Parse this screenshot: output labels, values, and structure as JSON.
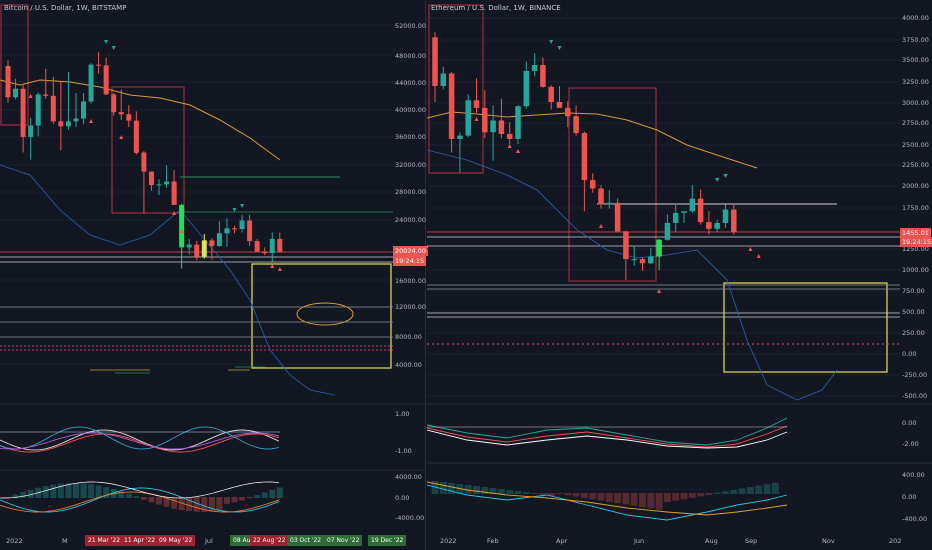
{
  "left": {
    "title": "Bitcoin / U.S. Dollar, 1W, BITSTAMP",
    "price_ticks": [
      "52000.00",
      "48000.00",
      "44000.00",
      "40000.00",
      "36000.00",
      "32000.00",
      "28000.00",
      "24000.00",
      "16000.00",
      "12000.00",
      "8000.00",
      "4000.00"
    ],
    "last_price": "20024.00",
    "countdown": "19:24:15",
    "osc_ticks": [
      "1.00",
      "-1.00"
    ],
    "macd_ticks": [
      "4000.00",
      "0.00",
      "-4000.00"
    ],
    "x_labels": [
      "2022",
      "Jul"
    ],
    "x_highlights": [
      {
        "text": "21 Mar '22",
        "color": "#a02230"
      },
      {
        "text": "11 Apr '22",
        "color": "#a02230"
      },
      {
        "text": "09 May '22",
        "color": "#a02230"
      },
      {
        "text": "08 Aug '22",
        "color": "#2e6b36"
      },
      {
        "text": "22 Aug '22",
        "color": "#a02230"
      },
      {
        "text": "03 Oct '22",
        "color": "#2e6b36"
      },
      {
        "text": "07 Nov '22",
        "color": "#2e6b36"
      },
      {
        "text": "19 Dec '22",
        "color": "#2e6b36"
      }
    ],
    "x_overlap_text": "M",
    "candles": [
      [
        "2022-01-03",
        46200,
        47000,
        41000,
        41800
      ],
      [
        "2022-01-10",
        41800,
        44400,
        41500,
        43000
      ],
      [
        "2022-01-17",
        43000,
        43500,
        34000,
        36200
      ],
      [
        "2022-01-24",
        36200,
        38900,
        33000,
        37800
      ],
      [
        "2022-01-31",
        37800,
        42500,
        36300,
        42200
      ],
      [
        "2022-02-07",
        42200,
        45800,
        41600,
        42000
      ],
      [
        "2022-02-14",
        42000,
        44700,
        38000,
        38400
      ],
      [
        "2022-02-21",
        38400,
        44000,
        34300,
        37700
      ],
      [
        "2022-02-28",
        37700,
        45400,
        37200,
        38400
      ],
      [
        "2022-03-07",
        38400,
        42400,
        37600,
        38800
      ],
      [
        "2022-03-14",
        38800,
        42400,
        38000,
        41200
      ],
      [
        "2022-03-21",
        41200,
        46600,
        40900,
        46400
      ],
      [
        "2022-03-28",
        46400,
        48200,
        45100,
        46300
      ],
      [
        "2022-04-04",
        46300,
        47400,
        42100,
        42200
      ],
      [
        "2022-04-11",
        42200,
        42400,
        39200,
        39700
      ],
      [
        "2022-04-18",
        39700,
        42900,
        38600,
        39400
      ],
      [
        "2022-04-25",
        39400,
        40700,
        37600,
        38500
      ],
      [
        "2022-05-02",
        38500,
        39800,
        33700,
        34000
      ],
      [
        "2022-05-09",
        34000,
        34200,
        25400,
        31300
      ],
      [
        "2022-05-16",
        31300,
        31300,
        28600,
        29400
      ],
      [
        "2022-05-23",
        29400,
        30200,
        28000,
        29500
      ],
      [
        "2022-05-30",
        29500,
        32200,
        29000,
        29900
      ],
      [
        "2022-06-06",
        29900,
        31500,
        26600,
        26600
      ],
      [
        "2022-06-13",
        26600,
        26800,
        17600,
        20600
      ],
      [
        "2022-06-20",
        20600,
        21800,
        19600,
        21000
      ],
      [
        "2022-06-27",
        21000,
        21500,
        18800,
        19300
      ],
      [
        "2022-07-04",
        19300,
        22500,
        19000,
        21600
      ],
      [
        "2022-07-11",
        21600,
        21900,
        18900,
        20800
      ],
      [
        "2022-07-18",
        20800,
        24300,
        20700,
        22600
      ],
      [
        "2022-07-25",
        22600,
        24700,
        20700,
        23300
      ],
      [
        "2022-08-01",
        23300,
        23700,
        22600,
        23200
      ],
      [
        "2022-08-08",
        23200,
        25200,
        22700,
        24400
      ],
      [
        "2022-08-15",
        24400,
        25200,
        20800,
        21500
      ],
      [
        "2022-08-22",
        21500,
        21800,
        19900,
        20000
      ],
      [
        "2022-08-29",
        20000,
        20600,
        19500,
        19800
      ],
      [
        "2022-09-05",
        19800,
        22700,
        18600,
        21800
      ],
      [
        "2022-09-12",
        21800,
        22700,
        19800,
        20000
      ]
    ]
  },
  "right": {
    "title": "Ethereum / U.S. Dollar, 1W, BINANCE",
    "price_ticks": [
      "4000.00",
      "3750.00",
      "3500.00",
      "3250.00",
      "3000.00",
      "2750.00",
      "2500.00",
      "2250.00",
      "2000.00",
      "1750.00",
      "1250.00",
      "1000.00",
      "750.00",
      "500.00",
      "250.00",
      "0.00",
      "-250.00",
      "-500.00"
    ],
    "last_price": "1455.01",
    "countdown": "19:24:15",
    "osc_ticks": [
      "0.00",
      "-2.00"
    ],
    "macd_ticks": [
      "400.00",
      "0.00",
      "-400.00"
    ],
    "x_labels": [
      "2022",
      "Feb",
      "Apr",
      "Jun",
      "Aug",
      "Sep",
      "Nov",
      "202"
    ],
    "candles": [
      [
        "2022-01-03",
        3770,
        3830,
        3000,
        3190
      ],
      [
        "2022-01-10",
        3190,
        3420,
        3150,
        3340
      ],
      [
        "2022-01-17",
        3340,
        3360,
        2400,
        2560
      ],
      [
        "2022-01-24",
        2560,
        2640,
        2160,
        2600
      ],
      [
        "2022-01-31",
        2600,
        3090,
        2580,
        3020
      ],
      [
        "2022-02-07",
        3020,
        3280,
        2870,
        2930
      ],
      [
        "2022-02-14",
        2930,
        3140,
        2570,
        2640
      ],
      [
        "2022-02-21",
        2640,
        2960,
        2300,
        2780
      ],
      [
        "2022-02-28",
        2780,
        3040,
        2570,
        2620
      ],
      [
        "2022-03-07",
        2620,
        2760,
        2500,
        2560
      ],
      [
        "2022-03-14",
        2560,
        2960,
        2500,
        2950
      ],
      [
        "2022-03-21",
        2950,
        3480,
        2920,
        3370
      ],
      [
        "2022-03-28",
        3370,
        3580,
        3310,
        3440
      ],
      [
        "2022-04-04",
        3440,
        3530,
        3170,
        3180
      ],
      [
        "2022-04-11",
        3180,
        3200,
        2910,
        3000
      ],
      [
        "2022-04-18",
        3000,
        3190,
        2940,
        2930
      ],
      [
        "2022-04-25",
        2930,
        3010,
        2700,
        2830
      ],
      [
        "2022-05-02",
        2830,
        2960,
        2600,
        2630
      ],
      [
        "2022-05-09",
        2630,
        2650,
        1700,
        2070
      ],
      [
        "2022-05-16",
        2070,
        2150,
        1920,
        1970
      ],
      [
        "2022-05-23",
        1970,
        2010,
        1730,
        1780
      ],
      [
        "2022-05-30",
        1780,
        1950,
        1730,
        1800
      ],
      [
        "2022-06-06",
        1800,
        1850,
        1450,
        1460
      ],
      [
        "2022-06-13",
        1460,
        1470,
        880,
        1130
      ],
      [
        "2022-06-20",
        1130,
        1280,
        1050,
        1130
      ],
      [
        "2022-06-27",
        1130,
        1150,
        990,
        1080
      ],
      [
        "2022-07-04",
        1080,
        1260,
        1070,
        1160
      ],
      [
        "2022-07-11",
        1160,
        1370,
        1000,
        1360
      ],
      [
        "2022-07-18",
        1360,
        1660,
        1350,
        1560
      ],
      [
        "2022-07-25",
        1560,
        1790,
        1450,
        1680
      ],
      [
        "2022-08-01",
        1680,
        1690,
        1560,
        1700
      ],
      [
        "2022-08-08",
        1700,
        2010,
        1680,
        1850
      ],
      [
        "2022-08-15",
        1850,
        1960,
        1540,
        1570
      ],
      [
        "2022-08-22",
        1570,
        1700,
        1420,
        1490
      ],
      [
        "2022-08-29",
        1490,
        1600,
        1450,
        1560
      ],
      [
        "2022-09-05",
        1560,
        1780,
        1500,
        1720
      ],
      [
        "2022-09-12",
        1720,
        1790,
        1420,
        1455
      ]
    ]
  },
  "colors": {
    "up": "#26a69a",
    "down": "#ef5350",
    "bg": "#131722",
    "ma": "#f0a030",
    "highlight_bar": "#22e05a",
    "yellow_bar": "#e0e060"
  }
}
